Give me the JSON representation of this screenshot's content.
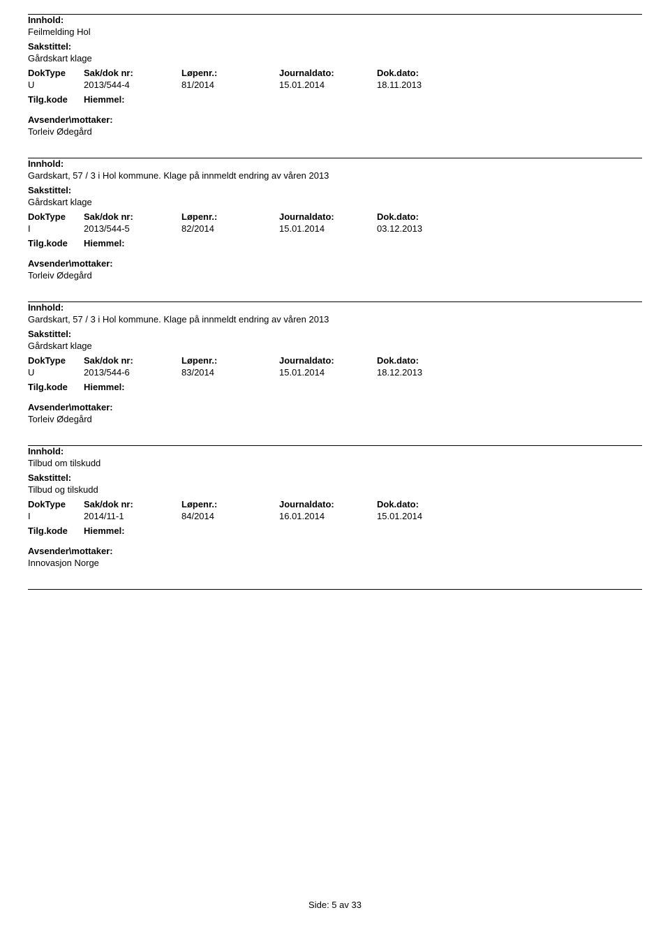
{
  "labels": {
    "innhold": "Innhold:",
    "sakstittel": "Sakstittel:",
    "doktype": "DokType",
    "sakdoknr": "Sak/dok nr:",
    "lopenr": "Løpenr.:",
    "journaldato": "Journaldato:",
    "dokdato": "Dok.dato:",
    "tilgkode": "Tilg.kode",
    "hiemmel": "Hiemmel:",
    "avsender": "Avsender\\mottaker:"
  },
  "entries": [
    {
      "innhold": "Feilmelding Hol",
      "sakstittel": "Gårdskart klage",
      "doktype": "U",
      "sakdoknr": "2013/544-4",
      "lopenr": "81/2014",
      "journaldato": "15.01.2014",
      "dokdato": "18.11.2013",
      "avsender": "Torleiv Ødegård"
    },
    {
      "innhold": "Gardskart, 57 / 3 i Hol kommune.  Klage på innmeldt endring av våren 2013",
      "sakstittel": "Gårdskart klage",
      "doktype": "I",
      "sakdoknr": "2013/544-5",
      "lopenr": "82/2014",
      "journaldato": "15.01.2014",
      "dokdato": "03.12.2013",
      "avsender": "Torleiv Ødegård"
    },
    {
      "innhold": "Gardskart, 57 / 3 i Hol kommune.  Klage på innmeldt endring av våren 2013",
      "sakstittel": "Gårdskart klage",
      "doktype": "U",
      "sakdoknr": "2013/544-6",
      "lopenr": "83/2014",
      "journaldato": "15.01.2014",
      "dokdato": "18.12.2013",
      "avsender": "Torleiv Ødegård"
    },
    {
      "innhold": "Tilbud om tilskudd",
      "sakstittel": "Tilbud og tilskudd",
      "doktype": "I",
      "sakdoknr": "2014/11-1",
      "lopenr": "84/2014",
      "journaldato": "16.01.2014",
      "dokdato": "15.01.2014",
      "avsender": "Innovasjon Norge"
    }
  ],
  "footer": {
    "text": "Side:  5 av  33"
  }
}
